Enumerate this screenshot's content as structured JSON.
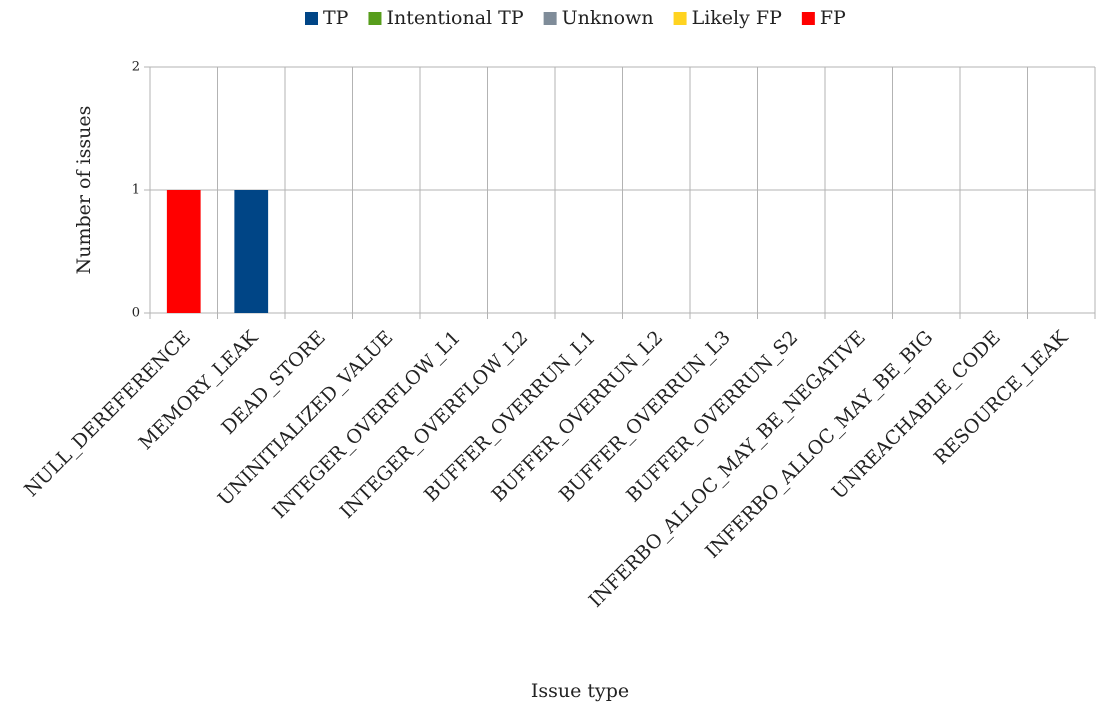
{
  "chart_data": {
    "type": "bar",
    "stacked": true,
    "xlabel": "Issue type",
    "ylabel": "Number of issues",
    "categories": [
      "NULL_DEREFERENCE",
      "MEMORY_LEAK",
      "DEAD_STORE",
      "UNINITIALIZED_VALUE",
      "INTEGER_OVERFLOW_L1",
      "INTEGER_OVERFLOW_L2",
      "BUFFER_OVERRUN_L1",
      "BUFFER_OVERRUN_L2",
      "BUFFER_OVERRUN_L3",
      "BUFFER_OVERRUN_S2",
      "INFERBO_ALLOC_MAY_BE_NEGATIVE",
      "INFERBO_ALLOC_MAY_BE_BIG",
      "UNREACHABLE_CODE",
      "RESOURCE_LEAK"
    ],
    "series": [
      {
        "name": "TP",
        "color": "#004586",
        "values": [
          0,
          1,
          0,
          0,
          0,
          0,
          0,
          0,
          0,
          0,
          0,
          0,
          0,
          0
        ]
      },
      {
        "name": "Intentional TP",
        "color": "#579d1c",
        "values": [
          0,
          0,
          0,
          0,
          0,
          0,
          0,
          0,
          0,
          0,
          0,
          0,
          0,
          0
        ]
      },
      {
        "name": "Unknown",
        "color": "#7f8c99",
        "values": [
          0,
          0,
          0,
          0,
          0,
          0,
          0,
          0,
          0,
          0,
          0,
          0,
          0,
          0
        ]
      },
      {
        "name": "Likely FP",
        "color": "#ffd320",
        "values": [
          0,
          0,
          0,
          0,
          0,
          0,
          0,
          0,
          0,
          0,
          0,
          0,
          0,
          0
        ]
      },
      {
        "name": "FP",
        "color": "#ff0000",
        "values": [
          1,
          0,
          0,
          0,
          0,
          0,
          0,
          0,
          0,
          0,
          0,
          0,
          0,
          0
        ]
      }
    ],
    "ylim": [
      0,
      2
    ],
    "yticks": [
      0,
      1,
      2
    ],
    "grid": true,
    "legend": "top"
  }
}
